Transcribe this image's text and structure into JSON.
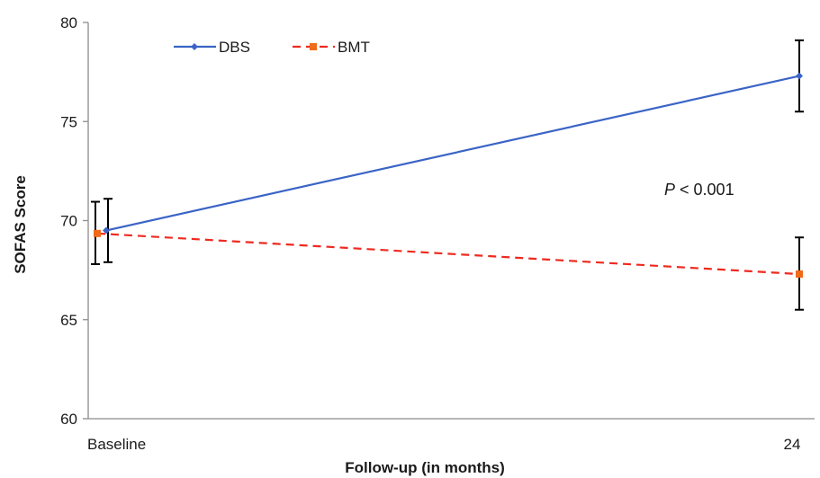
{
  "chart_data": {
    "type": "line",
    "xlabel": "Follow-up (in months)",
    "ylabel": "SOFAS Score",
    "ylim": [
      60,
      80
    ],
    "yticks": [
      60,
      65,
      70,
      75,
      80
    ],
    "categories": [
      "Baseline",
      "24"
    ],
    "grid": false,
    "legend_position": "top-left",
    "series": [
      {
        "name": "DBS",
        "values": [
          69.5,
          77.3
        ],
        "error_low": [
          67.9,
          75.5
        ],
        "error_high": [
          71.1,
          79.1
        ],
        "color": "#3b64c6",
        "marker": "diamond",
        "linestyle": "solid"
      },
      {
        "name": "BMT",
        "values": [
          69.35,
          67.3
        ],
        "error_low": [
          67.8,
          65.5
        ],
        "error_high": [
          70.95,
          69.15
        ],
        "color": "#ee2a20",
        "marker_color": "#f06a1a",
        "marker": "square",
        "linestyle": "dashed"
      }
    ],
    "annotation": {
      "italic": "P",
      "rest": " < 0.001"
    }
  }
}
